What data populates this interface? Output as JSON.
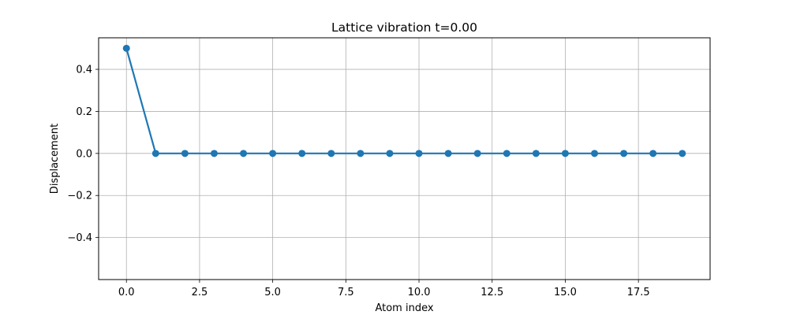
{
  "chart_data": {
    "type": "line",
    "title": "Lattice vibration t=0.00",
    "xlabel": "Atom index",
    "ylabel": "Displacement",
    "xlim": [
      -0.95,
      19.95
    ],
    "ylim": [
      -0.6,
      0.55
    ],
    "grid": true,
    "x_ticks": [
      {
        "value": 0.0,
        "label": "0.0"
      },
      {
        "value": 2.5,
        "label": "2.5"
      },
      {
        "value": 5.0,
        "label": "5.0"
      },
      {
        "value": 7.5,
        "label": "7.5"
      },
      {
        "value": 10.0,
        "label": "10.0"
      },
      {
        "value": 12.5,
        "label": "12.5"
      },
      {
        "value": 15.0,
        "label": "15.0"
      },
      {
        "value": 17.5,
        "label": "17.5"
      }
    ],
    "y_ticks": [
      {
        "value": 0.4,
        "label": "0.4"
      },
      {
        "value": 0.2,
        "label": "0.2"
      },
      {
        "value": 0.0,
        "label": "0.0"
      },
      {
        "value": -0.2,
        "label": "−0.2"
      },
      {
        "value": -0.4,
        "label": "−0.4"
      }
    ],
    "series": [
      {
        "color": "#1f77b4",
        "x": [
          0,
          1,
          2,
          3,
          4,
          5,
          6,
          7,
          8,
          9,
          10,
          11,
          12,
          13,
          14,
          15,
          16,
          17,
          18,
          19
        ],
        "y": [
          0.5,
          0.0,
          0.0,
          0.0,
          0.0,
          0.0,
          0.0,
          0.0,
          0.0,
          0.0,
          0.0,
          0.0,
          0.0,
          0.0,
          0.0,
          0.0,
          0.0,
          0.0,
          0.0,
          0.0
        ]
      }
    ]
  }
}
